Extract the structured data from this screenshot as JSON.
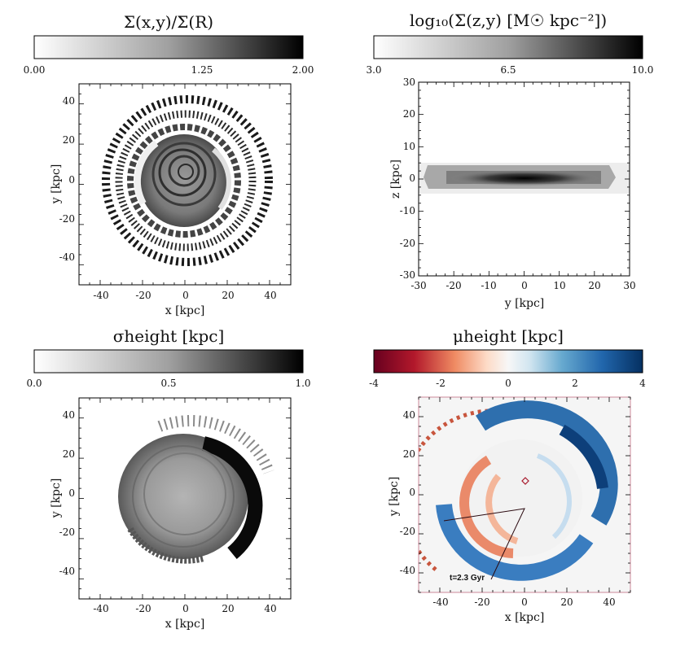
{
  "figure": {
    "panels": [
      {
        "id": "surface-density-ratio",
        "title": "Σ(x,y)/Σ(R)",
        "colorbar": {
          "cmap": "gray_r",
          "min": 0.0,
          "max": 2.0,
          "tick_labels": [
            "0.00",
            "1.25",
            "2.00"
          ],
          "tick_values": [
            0.0,
            1.25,
            2.0
          ]
        },
        "xlabel": "x [kpc]",
        "ylabel": "y [kpc]",
        "xlim": [
          -50,
          50
        ],
        "ylim": [
          -50,
          50
        ],
        "xticks": [
          "-40",
          "-20",
          "0",
          "20",
          "40"
        ],
        "yticks": [
          "40",
          "20",
          "0",
          "-20",
          "-40"
        ]
      },
      {
        "id": "edge-on-density",
        "title": "log₁₀(Σ(z,y) [M☉ kpc⁻²])",
        "colorbar": {
          "cmap": "gray_r",
          "min": 3.0,
          "max": 10.0,
          "tick_labels": [
            "3.0",
            "6.5",
            "10.0"
          ],
          "tick_values": [
            3.0,
            6.5,
            10.0
          ]
        },
        "xlabel": "y [kpc]",
        "ylabel": "z [kpc]",
        "xlim": [
          -30,
          30
        ],
        "ylim": [
          -30,
          30
        ],
        "xticks": [
          "-30",
          "-20",
          "-10",
          "0",
          "10",
          "20",
          "30"
        ],
        "yticks": [
          "30",
          "20",
          "10",
          "0",
          "-10",
          "-20",
          "-30"
        ]
      },
      {
        "id": "height-dispersion",
        "title": "σheight [kpc]",
        "colorbar": {
          "cmap": "gray_r",
          "min": 0.0,
          "max": 1.0,
          "tick_labels": [
            "0.0",
            "0.5",
            "1.0"
          ],
          "tick_values": [
            0.0,
            0.5,
            1.0
          ]
        },
        "xlabel": "x [kpc]",
        "ylabel": "y [kpc]",
        "xlim": [
          -50,
          50
        ],
        "ylim": [
          -50,
          50
        ],
        "xticks": [
          "-40",
          "-20",
          "0",
          "20",
          "40"
        ],
        "yticks": [
          "40",
          "20",
          "0",
          "-20",
          "-40"
        ]
      },
      {
        "id": "mean-height",
        "title": "μheight [kpc]",
        "colorbar": {
          "cmap": "RdBu",
          "min": -4,
          "max": 4,
          "tick_labels": [
            "-4",
            "-2",
            "0",
            "2",
            "4"
          ],
          "tick_values": [
            -4,
            -2,
            0,
            2,
            4
          ]
        },
        "xlabel": "x [kpc]",
        "ylabel": "y [kpc]",
        "xlim": [
          -50,
          50
        ],
        "ylim": [
          -50,
          50
        ],
        "xticks": [
          "-40",
          "-20",
          "0",
          "20",
          "40"
        ],
        "yticks": [
          "40",
          "20",
          "0",
          "-20",
          "-40"
        ],
        "annotation": "t=2.3 Gyr"
      }
    ]
  },
  "chart_data": [
    {
      "type": "heatmap",
      "title": "Σ(x,y)/Σ(R)",
      "xlabel": "x [kpc]",
      "ylabel": "y [kpc]",
      "xlim": [
        -50,
        50
      ],
      "ylim": [
        -50,
        50
      ],
      "colorbar_range": [
        0.0,
        2.0
      ],
      "features": {
        "disk_radius_kpc": 22,
        "outer_ring_radius_kpc": [
          28,
          42
        ]
      }
    },
    {
      "type": "heatmap",
      "title": "log₁₀(Σ(z,y) [M☉ kpc⁻²])",
      "xlabel": "y [kpc]",
      "ylabel": "z [kpc]",
      "xlim": [
        -30,
        30
      ],
      "ylim": [
        -30,
        30
      ],
      "colorbar_range": [
        3.0,
        10.0
      ],
      "features": {
        "disk_half_length_kpc": 22,
        "disk_half_thickness_kpc": 2.5
      }
    },
    {
      "type": "heatmap",
      "title": "σheight [kpc]",
      "xlabel": "x [kpc]",
      "ylabel": "y [kpc]",
      "xlim": [
        -50,
        50
      ],
      "ylim": [
        -50,
        50
      ],
      "colorbar_range": [
        0.0,
        1.0
      ],
      "features": {
        "disk_radius_kpc": 24
      }
    },
    {
      "type": "heatmap",
      "title": "μheight [kpc]",
      "xlabel": "x [kpc]",
      "ylabel": "y [kpc]",
      "xlim": [
        -50,
        50
      ],
      "ylim": [
        -50,
        50
      ],
      "colorbar_range": [
        -4,
        4
      ],
      "features": {
        "disk_radius_kpc": 22,
        "marker_xy": [
          0,
          7
        ],
        "annotation": "t=2.3 Gyr"
      }
    }
  ]
}
